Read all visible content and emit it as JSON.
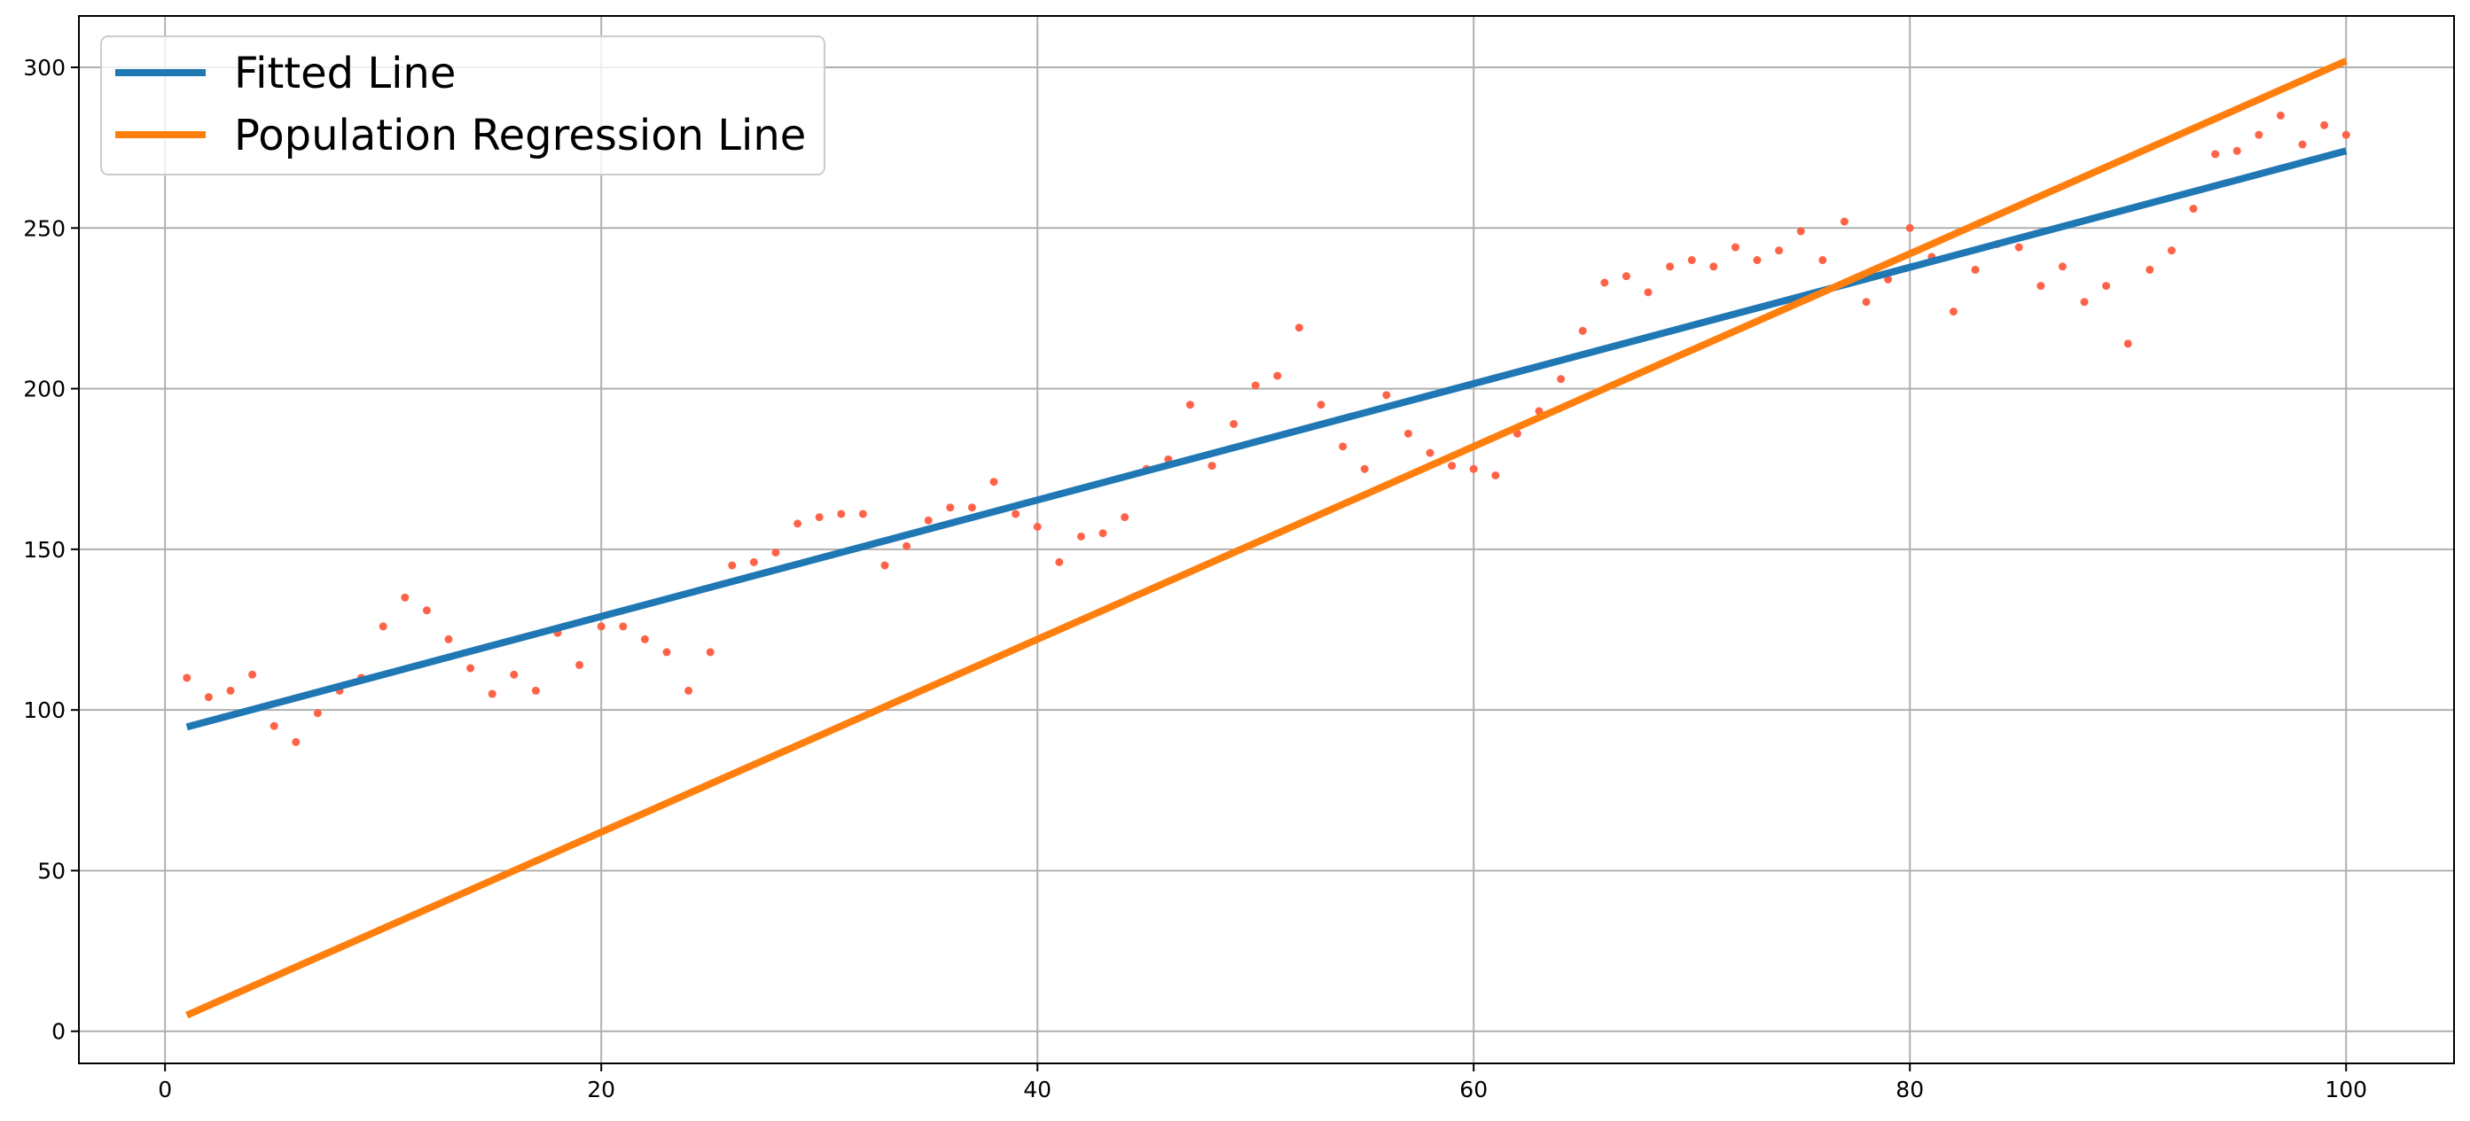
{
  "chart_data": {
    "type": "line",
    "title": "",
    "xlabel": "",
    "ylabel": "",
    "xlim": [
      -3.95,
      104.95
    ],
    "ylim": [
      -10,
      316
    ],
    "xticks": [
      0,
      20,
      40,
      60,
      80,
      100
    ],
    "yticks": [
      0,
      50,
      100,
      150,
      200,
      250,
      300
    ],
    "grid": true,
    "legend_position": "upper left",
    "series": [
      {
        "name": "Fitted Line",
        "type": "line",
        "color": "#1f77b4",
        "x": [
          1,
          100
        ],
        "y": [
          94.7,
          274.0
        ]
      },
      {
        "name": "Population Regression Line",
        "type": "line",
        "color": "#ff7f0e",
        "x": [
          1,
          100
        ],
        "y": [
          5.0,
          302.0
        ]
      }
    ],
    "scatter": {
      "color": "#ff6347",
      "points": [
        [
          1,
          110
        ],
        [
          2,
          104
        ],
        [
          3,
          106
        ],
        [
          4,
          111
        ],
        [
          5,
          95
        ],
        [
          6,
          90
        ],
        [
          7,
          99
        ],
        [
          8,
          106
        ],
        [
          9,
          110
        ],
        [
          10,
          126
        ],
        [
          11,
          135
        ],
        [
          12,
          131
        ],
        [
          13,
          122
        ],
        [
          14,
          113
        ],
        [
          15,
          105
        ],
        [
          16,
          111
        ],
        [
          17,
          106
        ],
        [
          18,
          124
        ],
        [
          19,
          114
        ],
        [
          20,
          126
        ],
        [
          21,
          126
        ],
        [
          22,
          122
        ],
        [
          23,
          118
        ],
        [
          24,
          106
        ],
        [
          25,
          118
        ],
        [
          26,
          145
        ],
        [
          27,
          146
        ],
        [
          28,
          149
        ],
        [
          29,
          158
        ],
        [
          30,
          160
        ],
        [
          31,
          161
        ],
        [
          32,
          161
        ],
        [
          33,
          145
        ],
        [
          34,
          151
        ],
        [
          35,
          159
        ],
        [
          36,
          163
        ],
        [
          37,
          163
        ],
        [
          38,
          171
        ],
        [
          39,
          161
        ],
        [
          40,
          157
        ],
        [
          41,
          146
        ],
        [
          42,
          154
        ],
        [
          43,
          155
        ],
        [
          44,
          160
        ],
        [
          45,
          175
        ],
        [
          46,
          178
        ],
        [
          47,
          195
        ],
        [
          48,
          176
        ],
        [
          49,
          189
        ],
        [
          50,
          201
        ],
        [
          51,
          204
        ],
        [
          52,
          219
        ],
        [
          53,
          195
        ],
        [
          54,
          182
        ],
        [
          55,
          175
        ],
        [
          56,
          198
        ],
        [
          57,
          186
        ],
        [
          58,
          180
        ],
        [
          59,
          176
        ],
        [
          60,
          175
        ],
        [
          61,
          173
        ],
        [
          62,
          186
        ],
        [
          63,
          193
        ],
        [
          64,
          203
        ],
        [
          65,
          218
        ],
        [
          66,
          233
        ],
        [
          67,
          235
        ],
        [
          68,
          230
        ],
        [
          69,
          238
        ],
        [
          70,
          240
        ],
        [
          71,
          238
        ],
        [
          72,
          244
        ],
        [
          73,
          240
        ],
        [
          74,
          243
        ],
        [
          75,
          249
        ],
        [
          76,
          240
        ],
        [
          77,
          252
        ],
        [
          78,
          227
        ],
        [
          79,
          234
        ],
        [
          80,
          250
        ],
        [
          81,
          241
        ],
        [
          82,
          224
        ],
        [
          83,
          237
        ],
        [
          84,
          245
        ],
        [
          85,
          244
        ],
        [
          86,
          232
        ],
        [
          87,
          238
        ],
        [
          88,
          227
        ],
        [
          89,
          232
        ],
        [
          90,
          214
        ],
        [
          91,
          237
        ],
        [
          92,
          243
        ],
        [
          93,
          256
        ],
        [
          94,
          273
        ],
        [
          95,
          274
        ],
        [
          96,
          279
        ],
        [
          97,
          285
        ],
        [
          98,
          276
        ],
        [
          99,
          282
        ],
        [
          100,
          279
        ]
      ]
    }
  }
}
